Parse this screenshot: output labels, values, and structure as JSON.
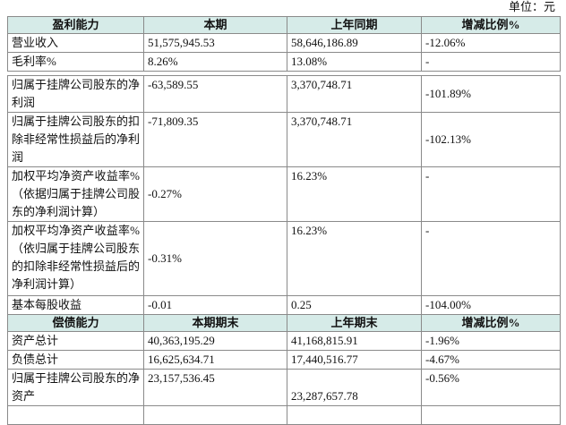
{
  "unit": "单位：元",
  "table1": {
    "header": [
      "盈利能力",
      "本期",
      "上年同期",
      "增减比例%"
    ],
    "rows": [
      [
        "营业收入",
        "51,575,945.53",
        "58,646,186.89",
        "-12.06%"
      ],
      [
        "毛利率%",
        "8.26%",
        "13.08%",
        "-"
      ],
      [
        "归属于挂牌公司股东的净利润",
        "-63,589.55",
        "3,370,748.71",
        "-101.89%"
      ],
      [
        "归属于挂牌公司股东的扣除非经常性损益后的净利润",
        "-71,809.35",
        "3,370,748.71",
        "-102.13%"
      ],
      [
        "加权平均净资产收益率%（依据归属于挂牌公司股东的净利润计算）",
        "-0.27%",
        "16.23%",
        "-"
      ],
      [
        "加权平均净资产收益率%（依归属于挂牌公司股东的扣除非经常性损益后的净利润计算）",
        "-0.31%",
        "16.23%",
        "-"
      ],
      [
        "基本每股收益",
        "-0.01",
        "0.25",
        "-104.00%"
      ]
    ]
  },
  "table2": {
    "header": [
      "偿债能力",
      "本期期末",
      "上年期末",
      "增减比例%"
    ],
    "rows": [
      [
        "资产总计",
        "40,363,195.29",
        "41,168,815.91",
        "-1.96%"
      ],
      [
        "负债总计",
        "16,625,634.71",
        "17,440,516.77",
        "-4.67%"
      ],
      [
        "归属于挂牌公司股东的净资产",
        "23,157,536.45",
        "23,287,657.78",
        "-0.56%"
      ]
    ]
  }
}
